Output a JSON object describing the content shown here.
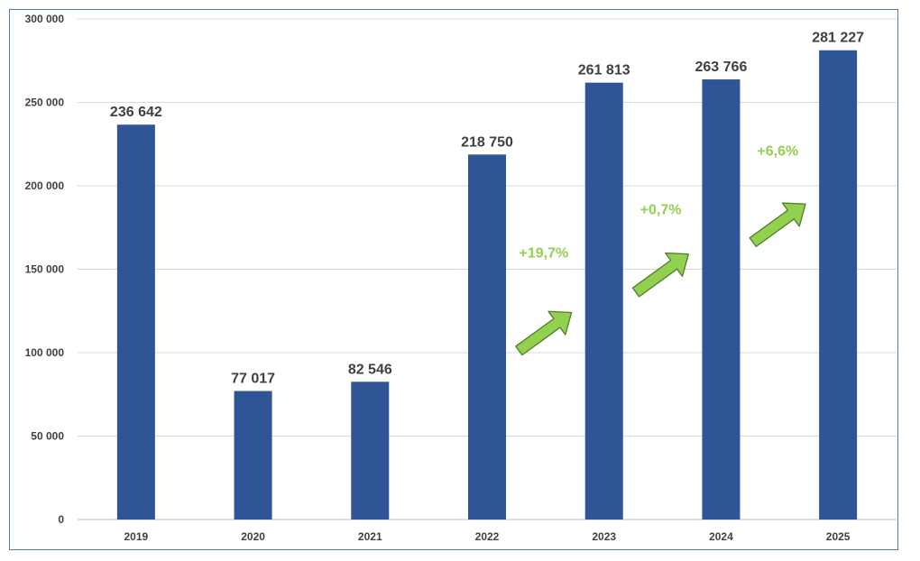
{
  "chart_data": {
    "type": "bar",
    "title": "",
    "xlabel": "",
    "ylabel": "",
    "categories": [
      "2019",
      "2020",
      "2021",
      "2022",
      "2023",
      "2024",
      "2025"
    ],
    "values": [
      236642,
      77017,
      82546,
      218750,
      261813,
      263766,
      281227
    ],
    "data_labels": [
      "236 642",
      "77 017",
      "82 546",
      "218 750",
      "261 813",
      "263 766",
      "281 227"
    ],
    "ylim": [
      0,
      300000
    ],
    "yticks": [
      0,
      50000,
      100000,
      150000,
      200000,
      250000,
      300000
    ],
    "ytick_labels": [
      "0",
      "50 000",
      "100 000",
      "150 000",
      "200 000",
      "250 000",
      "300 000"
    ],
    "grid": true,
    "legend": "none",
    "bar_color": "#2f5597",
    "annotations": [
      {
        "text": "+19,7%",
        "between": [
          "2022",
          "2023"
        ],
        "icon": "up-right-arrow-icon"
      },
      {
        "text": "+0,7%",
        "between": [
          "2023",
          "2024"
        ],
        "icon": "up-right-arrow-icon"
      },
      {
        "text": "+6,6%",
        "between": [
          "2024",
          "2025"
        ],
        "icon": "up-right-arrow-icon"
      }
    ],
    "annotation_color": "#92d050"
  }
}
